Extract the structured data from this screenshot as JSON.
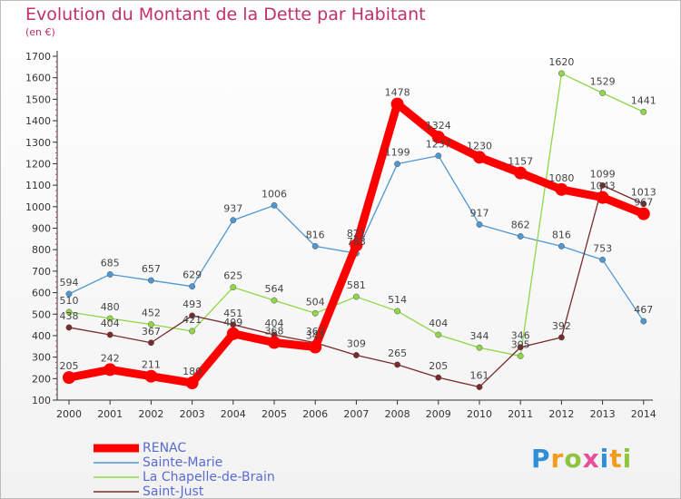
{
  "chart_data": {
    "type": "line",
    "title": "Evolution du Montant de la Dette par Habitant",
    "subtitle": "(en €)",
    "x": [
      "2000",
      "2001",
      "2002",
      "2003",
      "2004",
      "2005",
      "2006",
      "2007",
      "2008",
      "2009",
      "2010",
      "2011",
      "2012",
      "2013",
      "2014"
    ],
    "ylim": [
      100,
      1700
    ],
    "yticks": [
      100,
      200,
      300,
      400,
      500,
      600,
      700,
      800,
      900,
      1000,
      1100,
      1200,
      1300,
      1400,
      1500,
      1600,
      1700
    ],
    "grid": false,
    "legend_position": "bottom-left",
    "series": [
      {
        "name": "RENAC",
        "color": "#ff0000",
        "values": [
          205,
          242,
          211,
          180,
          409,
          368,
          347,
          821,
          1478,
          1324,
          1230,
          1157,
          1080,
          1043,
          967
        ],
        "labels": [
          "205",
          "242",
          "211",
          "180",
          "409",
          "368",
          "347",
          "821",
          "1478",
          "1324",
          "1230",
          "1157",
          "1080",
          "1043",
          "967"
        ]
      },
      {
        "name": "Sainte-Marie",
        "color": "#4f97d3",
        "values": [
          594,
          685,
          657,
          629,
          937,
          1006,
          816,
          783,
          1199,
          1237,
          917,
          862,
          816,
          753,
          467
        ],
        "labels": [
          "594",
          "685",
          "657",
          "629",
          "937",
          "1006",
          "816",
          "783",
          "1199",
          "1237",
          "917",
          "862",
          "816",
          "753",
          "467"
        ]
      },
      {
        "name": "La Chapelle-de-Brain",
        "color": "#8fd648",
        "values": [
          510,
          480,
          452,
          421,
          625,
          564,
          504,
          581,
          514,
          404,
          344,
          305,
          1620,
          1529,
          1441
        ],
        "labels": [
          "510",
          "480",
          "452",
          "421",
          "625",
          "564",
          "504",
          "581",
          "514",
          "404",
          "344",
          "305",
          "1620",
          "1529",
          "1441"
        ]
      },
      {
        "name": "Saint-Just",
        "color": "#7a2a2a",
        "values": [
          438,
          404,
          367,
          493,
          451,
          404,
          367,
          309,
          265,
          205,
          161,
          346,
          392,
          1099,
          1013
        ],
        "labels": [
          "438",
          "404",
          "367",
          "493",
          "451",
          "404",
          "367",
          "309",
          "265",
          "205",
          "161",
          "346",
          "392",
          "1099",
          "1013"
        ]
      }
    ]
  },
  "brand": {
    "letters": [
      "P",
      "r",
      "o",
      "x",
      "i",
      "t",
      "i"
    ],
    "colors": [
      "#2f8fd8",
      "#f59b1c",
      "#8fc43f",
      "#e84f9a",
      "#2f8fd8",
      "#f59b1c",
      "#8fc43f"
    ]
  },
  "colors": {
    "title": "#c0306b",
    "axis": "#333333",
    "tick_label": "#333333",
    "value_label": "#444444"
  }
}
